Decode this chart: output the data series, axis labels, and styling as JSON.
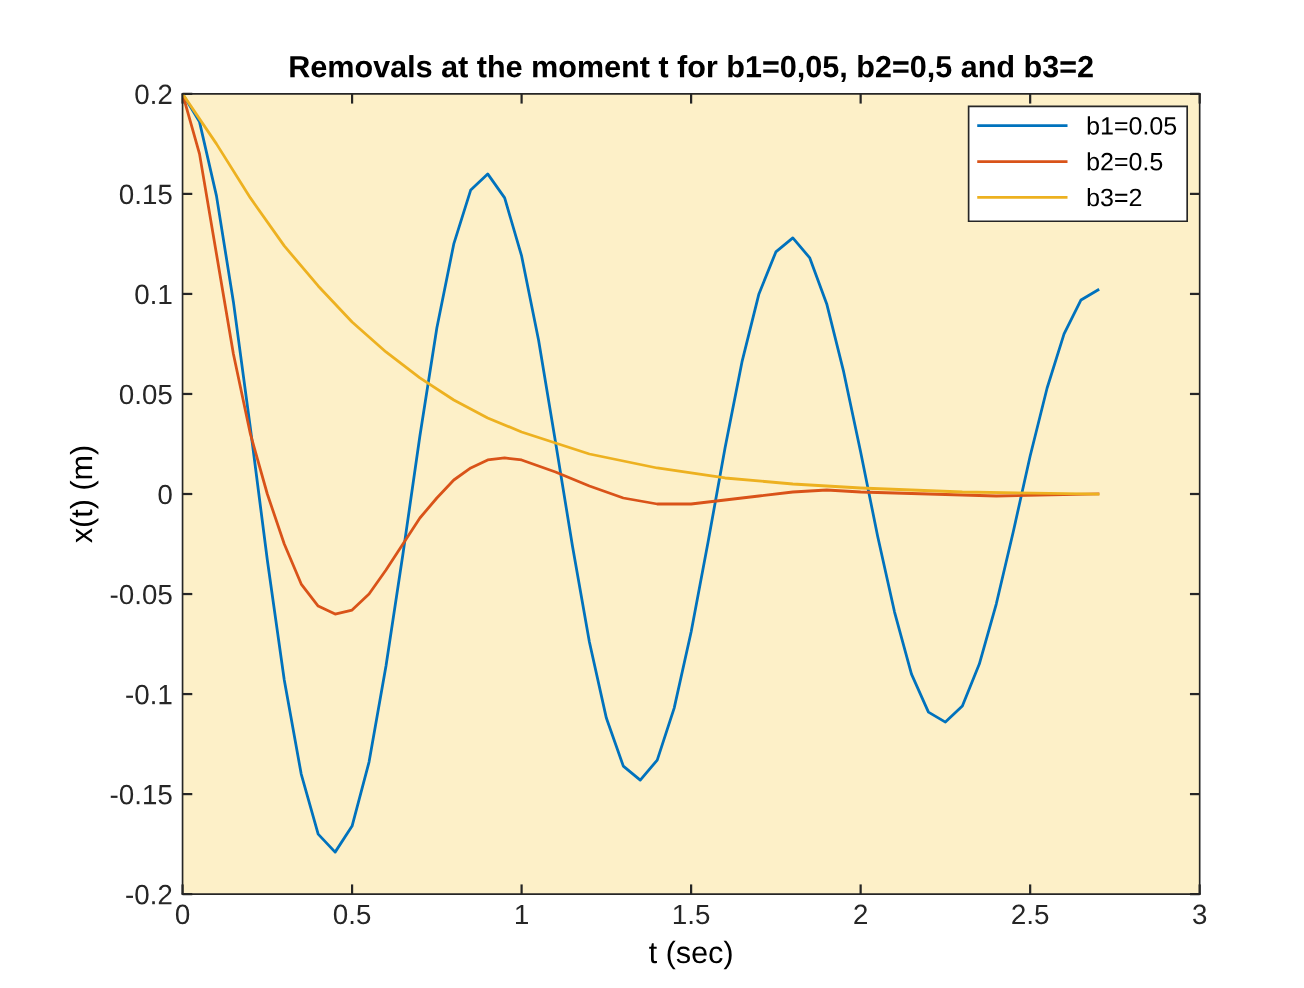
{
  "chart_data": {
    "type": "line",
    "title": "Removals at the moment t for b1=0,05, b2=0,5 and b3=2",
    "xlabel": "t (sec)",
    "ylabel": "x(t) (m)",
    "xlim": [
      0,
      3
    ],
    "xticks": [
      0,
      0.5,
      1,
      1.5,
      2,
      2.5,
      3
    ],
    "ylim": [
      -0.2,
      0.2
    ],
    "yticks": [
      -0.2,
      -0.15,
      -0.1,
      -0.05,
      0,
      0.05,
      0.1,
      0.15,
      0.2
    ],
    "grid": false,
    "legend": "top right",
    "line_style": "solid",
    "marker": "none",
    "series": [
      {
        "name": "b1=0.05",
        "color": "#0072bd",
        "x": [
          0,
          0.05,
          0.1,
          0.15,
          0.2,
          0.25,
          0.3,
          0.35,
          0.4,
          0.45,
          0.5,
          0.55,
          0.6,
          0.65,
          0.7,
          0.75,
          0.8,
          0.85,
          0.9,
          0.95,
          1.0,
          1.05,
          1.1,
          1.15,
          1.2,
          1.25,
          1.3,
          1.35,
          1.4,
          1.45,
          1.5,
          1.55,
          1.6,
          1.65,
          1.7,
          1.75,
          1.8,
          1.85,
          1.9,
          1.95,
          2.0,
          2.05,
          2.1,
          2.15,
          2.2,
          2.25,
          2.3,
          2.35,
          2.4,
          2.45,
          2.5,
          2.55,
          2.6,
          2.65,
          2.7
        ],
        "values": [
          0.2,
          0.186,
          0.149,
          0.096,
          0.033,
          -0.033,
          -0.093,
          -0.14,
          -0.17,
          -0.179,
          -0.166,
          -0.134,
          -0.086,
          -0.03,
          0.029,
          0.083,
          0.125,
          0.152,
          0.16,
          0.148,
          0.119,
          0.077,
          0.026,
          -0.026,
          -0.074,
          -0.112,
          -0.136,
          -0.143,
          -0.133,
          -0.107,
          -0.069,
          -0.024,
          0.023,
          0.066,
          0.1,
          0.121,
          0.128,
          0.118,
          0.095,
          0.061,
          0.021,
          -0.021,
          -0.059,
          -0.09,
          -0.109,
          -0.114,
          -0.106,
          -0.085,
          -0.055,
          -0.019,
          0.019,
          0.053,
          0.08,
          0.097,
          0.102
        ]
      },
      {
        "name": "b2=0.5",
        "color": "#d95319",
        "x": [
          0,
          0.05,
          0.1,
          0.15,
          0.2,
          0.25,
          0.3,
          0.35,
          0.4,
          0.45,
          0.5,
          0.55,
          0.6,
          0.65,
          0.7,
          0.75,
          0.8,
          0.85,
          0.9,
          0.95,
          1.0,
          1.1,
          1.2,
          1.3,
          1.4,
          1.5,
          1.6,
          1.7,
          1.8,
          1.9,
          2.0,
          2.2,
          2.4,
          2.7
        ],
        "values": [
          0.2,
          0.17,
          0.12,
          0.07,
          0.03,
          0.0,
          -0.025,
          -0.045,
          -0.056,
          -0.06,
          -0.058,
          -0.05,
          -0.038,
          -0.025,
          -0.012,
          -0.002,
          0.007,
          0.013,
          0.017,
          0.018,
          0.017,
          0.011,
          0.004,
          -0.002,
          -0.005,
          -0.005,
          -0.003,
          -0.001,
          0.001,
          0.002,
          0.001,
          0.0,
          -0.001,
          0.0
        ]
      },
      {
        "name": "b3=2",
        "color": "#edb120",
        "x": [
          0,
          0.1,
          0.2,
          0.3,
          0.4,
          0.5,
          0.6,
          0.7,
          0.8,
          0.9,
          1.0,
          1.2,
          1.4,
          1.6,
          1.8,
          2.0,
          2.3,
          2.7
        ],
        "values": [
          0.2,
          0.175,
          0.148,
          0.124,
          0.104,
          0.086,
          0.071,
          0.058,
          0.047,
          0.038,
          0.031,
          0.02,
          0.013,
          0.008,
          0.005,
          0.003,
          0.001,
          0.0
        ]
      }
    ]
  }
}
